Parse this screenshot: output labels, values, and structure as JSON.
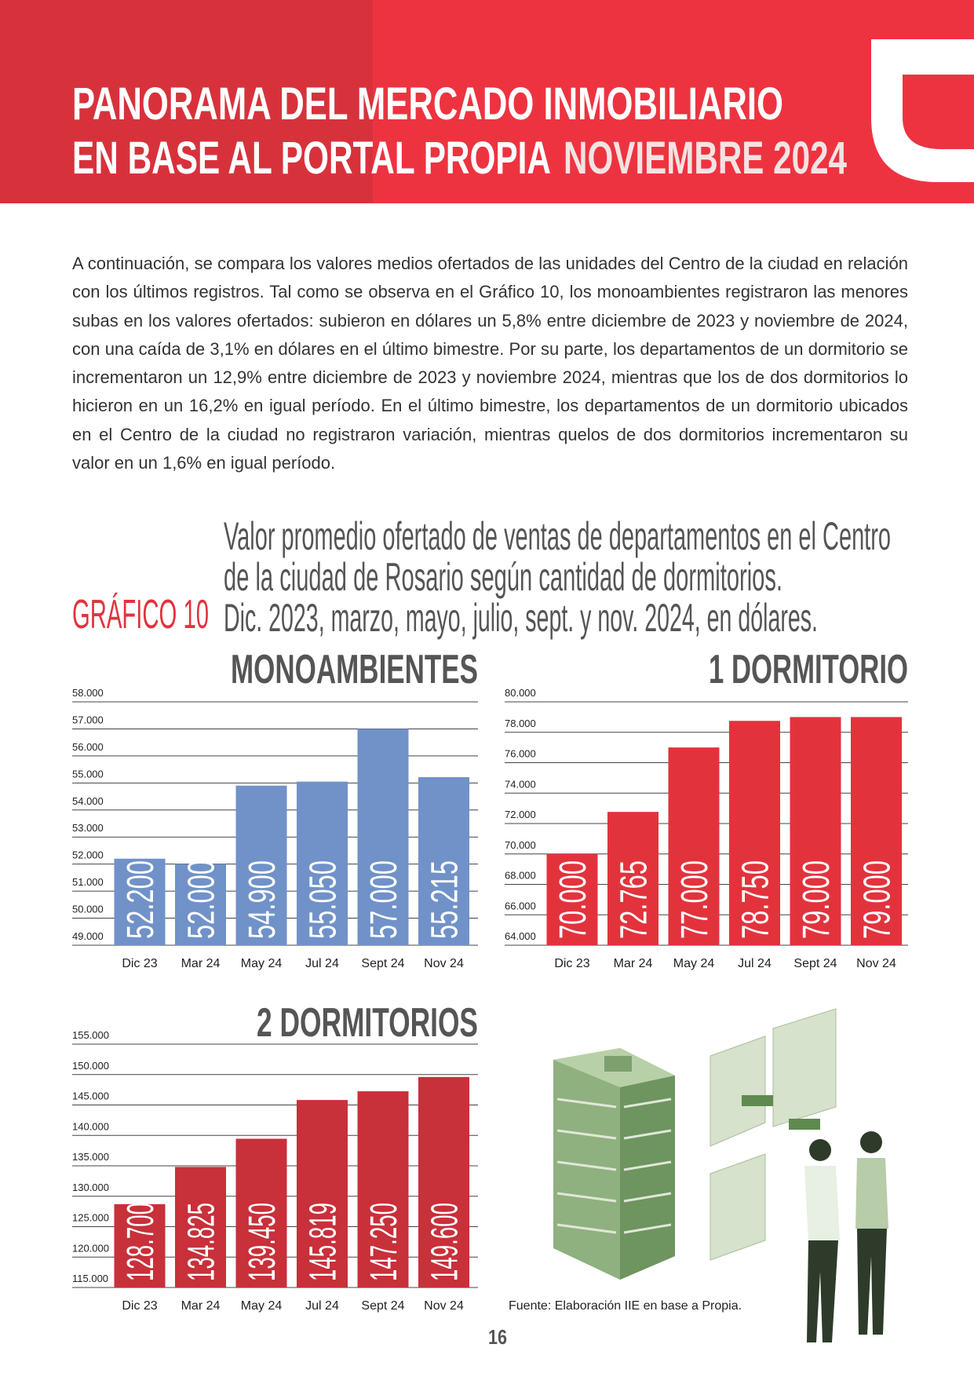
{
  "header": {
    "title_lines": [
      "PANORAMA DEL MERCADO INMOBILIARIO",
      "EN BASE AL PORTAL PROPIA"
    ],
    "highlight": "NOVIEMBRE 2024"
  },
  "body": {
    "paragraph": "A continuación, se compara los valores medios ofertados de las unidades del Centro de la ciudad en relación con los últimos registros. Tal como se observa en el Gráfico 10, los monoambientes registraron las menores subas en los valores ofertados: subieron en dólares un 5,8% entre diciembre de 2023 y noviembre de 2024, con una caída de 3,1% en dólares en el último bimestre. Por su parte, los departamentos de un dormitorio se incrementaron un 12,9% entre diciembre de 2023 y noviembre 2024, mientras que los de dos dormitorios lo hicieron en un 16,2% en igual período. En el último bimestre, los departamentos de un dormitorio ubicados en el Centro de la ciudad no registraron variación, mientras quelos de dos dormitorios incrementaron su valor en un 1,6% en igual período."
  },
  "caption": {
    "label": "GRÁFICO 10",
    "lines": [
      "Valor promedio ofertado de ventas de departamentos en el Centro",
      "de la ciudad de Rosario según cantidad de dormitorios.",
      "Dic. 2023, marzo, mayo, julio, sept. y nov. 2024, en dólares."
    ]
  },
  "chart_data": [
    {
      "type": "bar",
      "title": "MONOAMBIENTES",
      "color": "#7092c8",
      "categories": [
        "Dic 23",
        "Mar 24",
        "May 24",
        "Jul 24",
        "Sept 24",
        "Nov 24"
      ],
      "values": [
        52200,
        52000,
        54900,
        55050,
        57000,
        55215
      ],
      "value_labels": [
        "52.200",
        "52.000",
        "54.900",
        "55.050",
        "57.000",
        "55.215"
      ],
      "ylim": [
        49000,
        58000
      ],
      "yticks": [
        {
          "value": 49000,
          "label": "49.000"
        },
        {
          "value": 50000,
          "label": "50.000"
        },
        {
          "value": 51000,
          "label": "51.000"
        },
        {
          "value": 52000,
          "label": "52.000"
        },
        {
          "value": 53000,
          "label": "53.000"
        },
        {
          "value": 54000,
          "label": "54.000"
        },
        {
          "value": 55000,
          "label": "55.000"
        },
        {
          "value": 56000,
          "label": "56.000"
        },
        {
          "value": 57000,
          "label": "57.000"
        },
        {
          "value": 58000,
          "label": "58.000"
        }
      ]
    },
    {
      "type": "bar",
      "title": "1 DORMITORIO",
      "color": "#e2333d",
      "categories": [
        "Dic 23",
        "Mar 24",
        "May 24",
        "Jul 24",
        "Sept 24",
        "Nov 24"
      ],
      "values": [
        70000,
        72765,
        77000,
        78750,
        79000,
        79000
      ],
      "value_labels": [
        "70.000",
        "72.765",
        "77.000",
        "78.750",
        "79.000",
        "79.000"
      ],
      "ylim": [
        64000,
        80000
      ],
      "yticks": [
        {
          "value": 64000,
          "label": "64.000"
        },
        {
          "value": 66000,
          "label": "66.000"
        },
        {
          "value": 68000,
          "label": "68.000"
        },
        {
          "value": 70000,
          "label": "70.000"
        },
        {
          "value": 72000,
          "label": "72.000"
        },
        {
          "value": 74000,
          "label": "74.000"
        },
        {
          "value": 76000,
          "label": "76.000"
        },
        {
          "value": 78000,
          "label": "78.000"
        },
        {
          "value": 80000,
          "label": "80.000"
        }
      ]
    },
    {
      "type": "bar",
      "title": "2 DORMITORIOS",
      "color": "#c8303a",
      "categories": [
        "Dic 23",
        "Mar 24",
        "May 24",
        "Jul 24",
        "Sept 24",
        "Nov 24"
      ],
      "values": [
        128700,
        134825,
        139450,
        145819,
        147250,
        149600
      ],
      "value_labels": [
        "128.700",
        "134.825",
        "139.450",
        "145.819",
        "147.250",
        "149.600"
      ],
      "ylim": [
        115000,
        155000
      ],
      "yticks": [
        {
          "value": 115000,
          "label": "115.000"
        },
        {
          "value": 120000,
          "label": "120.000"
        },
        {
          "value": 125000,
          "label": "125.000"
        },
        {
          "value": 130000,
          "label": "130.000"
        },
        {
          "value": 135000,
          "label": "135.000"
        },
        {
          "value": 140000,
          "label": "140.000"
        },
        {
          "value": 145000,
          "label": "145.000"
        },
        {
          "value": 150000,
          "label": "150.000"
        },
        {
          "value": 155000,
          "label": "155.000"
        }
      ]
    }
  ],
  "source": "Fuente: Elaboración IIE en base a Propia.",
  "page_number": "16"
}
